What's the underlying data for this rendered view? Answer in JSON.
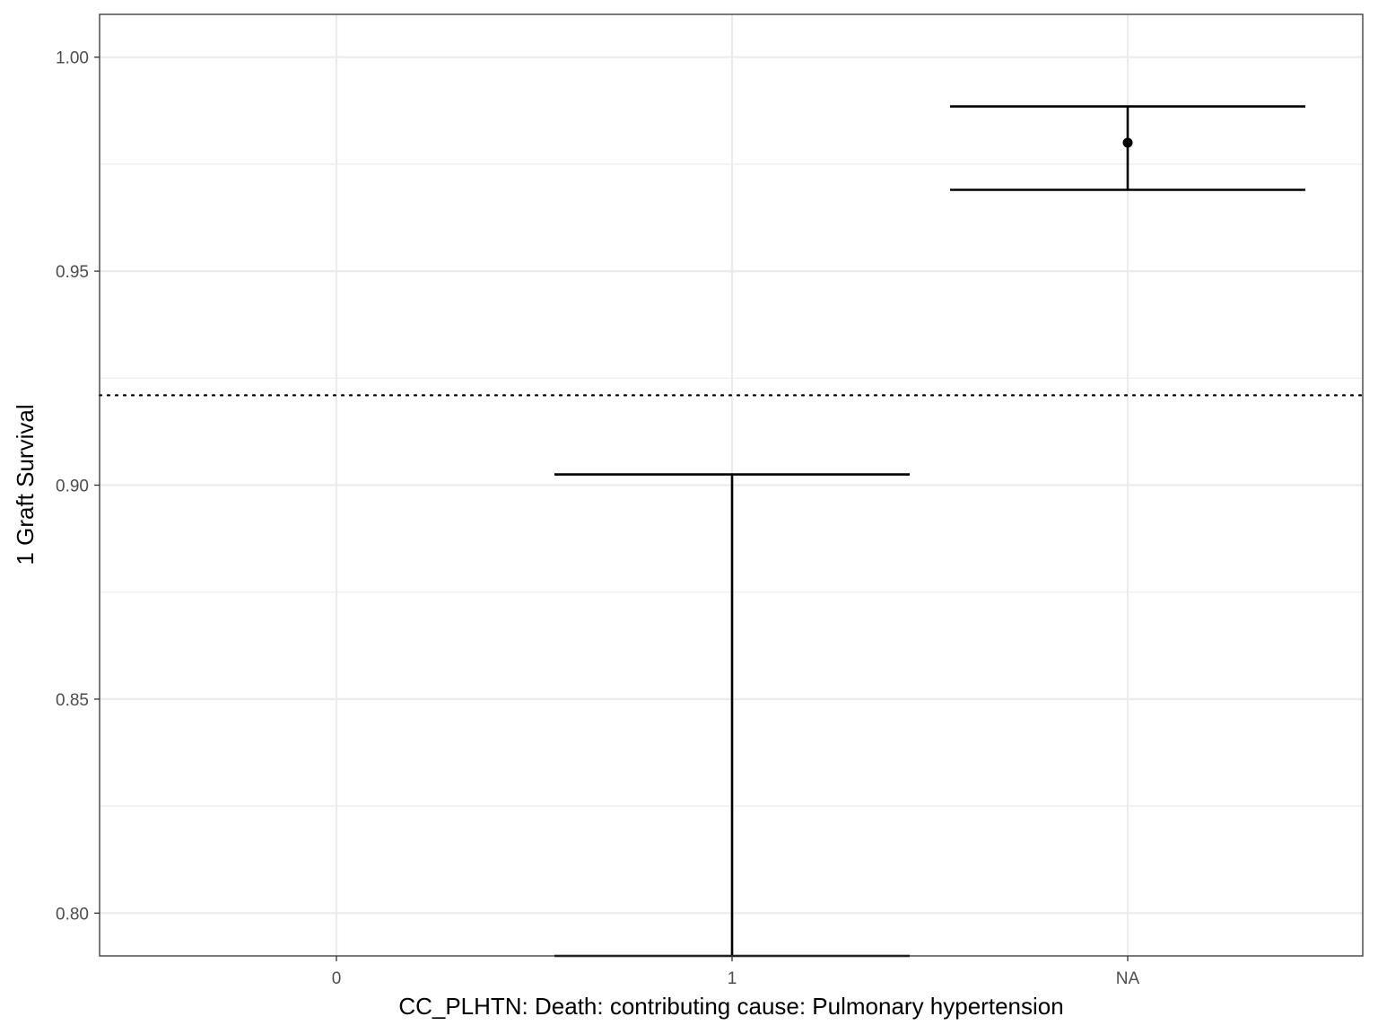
{
  "chart_data": {
    "type": "errorbar",
    "xlabel": "CC_PLHTN: Death: contributing cause: Pulmonary hypertension",
    "ylabel": "1 Graft Survival",
    "categories": [
      "0",
      "1",
      "NA"
    ],
    "ylim": [
      0.79,
      1.01
    ],
    "yticks": [
      0.8,
      0.85,
      0.9,
      0.95,
      1.0
    ],
    "ytick_labels": [
      "0.80",
      "0.85",
      "0.90",
      "0.95",
      "1.00"
    ],
    "reference_line": 0.921,
    "points": [
      {
        "category": "1",
        "estimate": null,
        "lower": 0.79,
        "upper": 0.9025
      },
      {
        "category": "NA",
        "estimate": 0.98,
        "lower": 0.969,
        "upper": 0.9885
      }
    ],
    "grid": true,
    "legend": "none"
  },
  "colors": {
    "marks": "#000000",
    "grid": "#ebebeb",
    "panel_border": "#333333",
    "tick_text": "#4d4d4d"
  }
}
